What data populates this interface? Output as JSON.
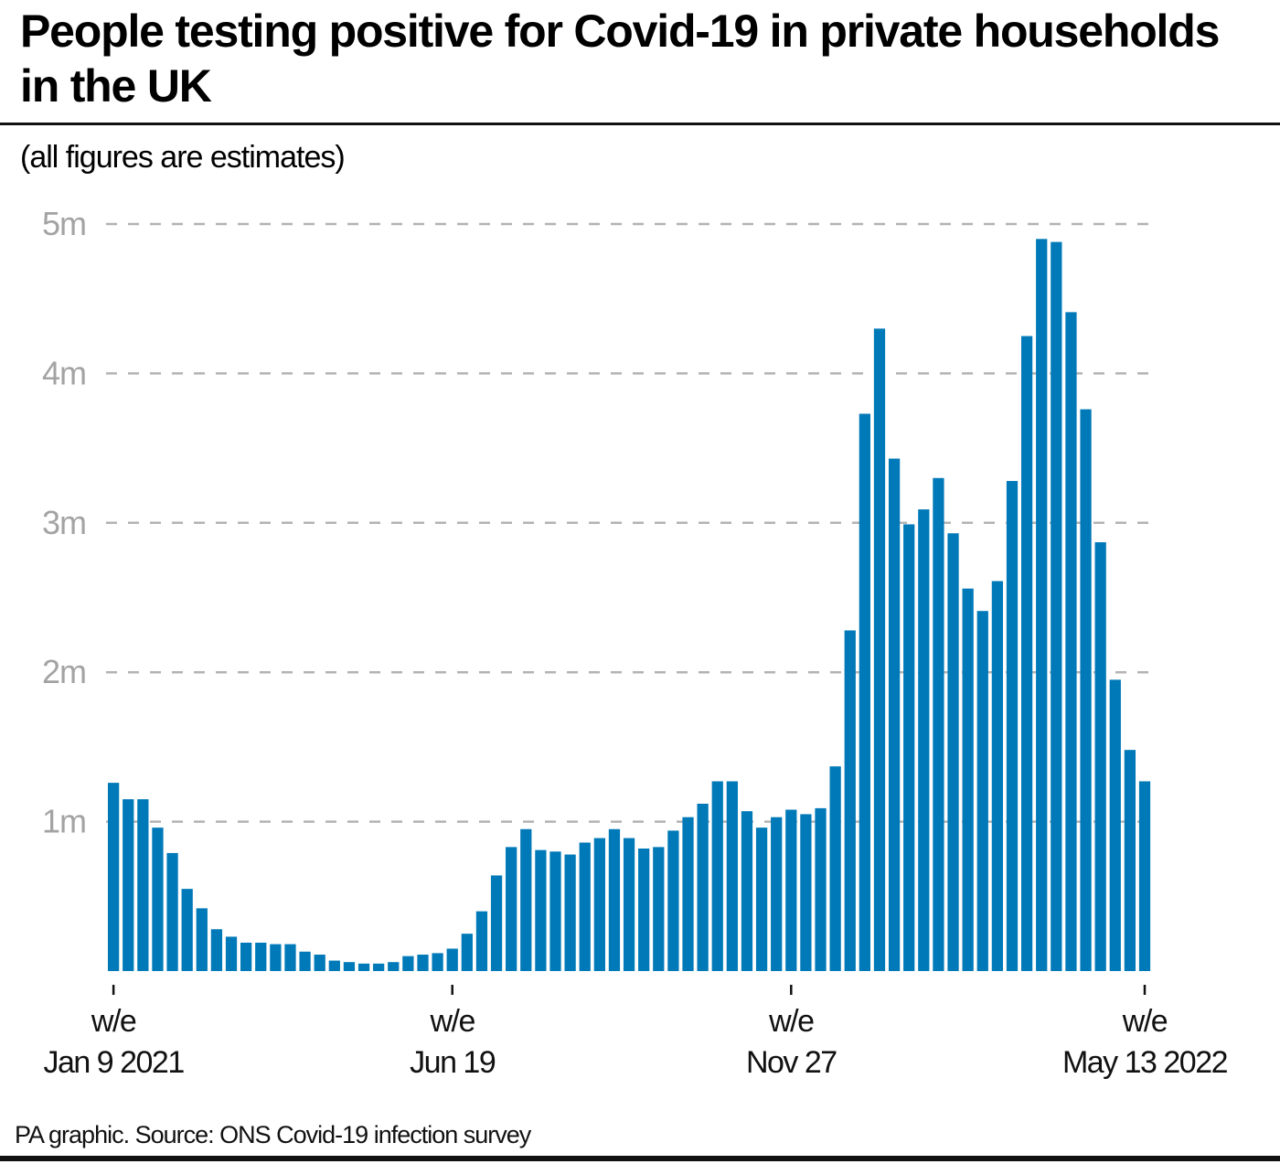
{
  "header": {
    "title": "People testing positive for Covid-19 in private households in the UK",
    "subtitle": "(all figures are estimates)"
  },
  "footer": {
    "source": "PA graphic. Source: ONS Covid-19 infection survey"
  },
  "colors": {
    "bar": "#0079b8",
    "grid": "#b3b3b3",
    "ytick": "#a3a3a3",
    "text": "#111111"
  },
  "chart_data": {
    "type": "bar",
    "title": "People testing positive for Covid-19 in private households in the UK",
    "subtitle": "(all figures are estimates)",
    "xlabel": "",
    "ylabel": "",
    "unit": "millions",
    "ylim": [
      0,
      5
    ],
    "grid": true,
    "grid_style": "dashed horizontal",
    "legend": "none",
    "yticks": [
      {
        "value": 1,
        "label": "1m"
      },
      {
        "value": 2,
        "label": "2m"
      },
      {
        "value": 3,
        "label": "3m"
      },
      {
        "value": 4,
        "label": "4m"
      },
      {
        "value": 5,
        "label": "5m"
      }
    ],
    "xticks": [
      {
        "index": 0,
        "line1": "w/e",
        "line2": "Jan 9 2021"
      },
      {
        "index": 23,
        "line1": "w/e",
        "line2": "Jun 19"
      },
      {
        "index": 46,
        "line1": "w/e",
        "line2": "Nov 27"
      },
      {
        "index": 70,
        "line1": "w/e",
        "line2": "May 13 2022"
      }
    ],
    "x_start": "w/e Jan 9 2021",
    "x_end": "w/e May 13 2022",
    "series": [
      {
        "name": "People testing positive (estimate)",
        "values": [
          1.26,
          1.15,
          1.15,
          0.96,
          0.79,
          0.55,
          0.42,
          0.28,
          0.23,
          0.19,
          0.19,
          0.18,
          0.18,
          0.13,
          0.11,
          0.07,
          0.06,
          0.05,
          0.05,
          0.06,
          0.1,
          0.11,
          0.12,
          0.15,
          0.25,
          0.4,
          0.64,
          0.83,
          0.95,
          0.81,
          0.8,
          0.78,
          0.86,
          0.89,
          0.95,
          0.89,
          0.82,
          0.83,
          0.94,
          1.03,
          1.12,
          1.27,
          1.27,
          1.07,
          0.96,
          1.03,
          1.08,
          1.05,
          1.09,
          1.37,
          2.28,
          3.73,
          4.3,
          3.43,
          2.99,
          3.09,
          3.3,
          2.93,
          2.56,
          2.41,
          2.61,
          3.28,
          4.25,
          4.9,
          4.88,
          4.41,
          3.76,
          2.87,
          1.95,
          1.48,
          1.27
        ]
      }
    ]
  }
}
